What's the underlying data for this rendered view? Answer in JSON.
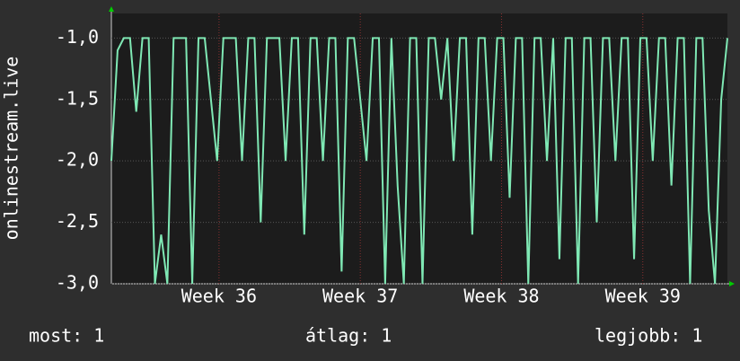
{
  "chart_data": {
    "type": "line",
    "y_label": "onlinestream.live",
    "x": [
      0,
      1,
      2,
      3,
      4,
      5,
      6,
      7,
      8,
      9,
      10,
      11,
      12,
      13,
      14,
      15,
      16,
      17,
      18,
      19,
      20,
      21,
      22,
      23,
      24,
      25,
      26,
      27,
      28,
      29,
      30,
      31,
      32,
      33,
      34,
      35,
      36,
      37,
      38,
      39,
      40,
      41,
      42,
      43,
      44,
      45,
      46,
      47,
      48,
      49,
      50,
      51,
      52,
      53,
      54,
      55,
      56,
      57,
      58,
      59,
      60,
      61,
      62,
      63,
      64,
      65,
      66,
      67,
      68,
      69,
      70,
      71,
      72,
      73,
      74,
      75,
      76,
      77,
      78,
      79,
      80,
      81,
      82,
      83,
      84,
      85,
      86,
      87,
      88,
      89,
      90,
      91,
      92,
      93,
      94,
      95,
      96,
      97,
      98,
      99
    ],
    "series": [
      {
        "name": "onlinestream.live",
        "color": "#7fe8b4",
        "values": [
          -2,
          -1.1,
          -1,
          -1,
          -1.6,
          -1,
          -1,
          -3,
          -2.6,
          -3,
          -1,
          -1,
          -1,
          -3,
          -1,
          -1,
          -1.5,
          -2,
          -1,
          -1,
          -1,
          -2,
          -1,
          -1,
          -2.5,
          -1,
          -1,
          -1,
          -2,
          -1,
          -1,
          -2.6,
          -1,
          -1,
          -2,
          -1,
          -1,
          -2.9,
          -1,
          -1,
          -1.5,
          -2,
          -1,
          -1,
          -3,
          -1,
          -2.2,
          -3,
          -1,
          -1,
          -3,
          -1,
          -1,
          -1.5,
          -1,
          -2,
          -1,
          -1,
          -2.6,
          -1,
          -1,
          -2,
          -1,
          -1,
          -2.3,
          -1,
          -1,
          -3,
          -1,
          -1,
          -2,
          -1,
          -2.8,
          -1,
          -1,
          -3,
          -1,
          -1,
          -2.5,
          -1,
          -1,
          -2,
          -1,
          -1,
          -2.8,
          -1,
          -1,
          -2,
          -1,
          -1,
          -2.2,
          -1,
          -1,
          -3,
          -1,
          -1,
          -2.4,
          -3,
          -1.5,
          -1
        ]
      }
    ],
    "xlim": [
      0,
      99
    ],
    "xticks": [
      {
        "value": 17.3,
        "label": "Week 36"
      },
      {
        "value": 40,
        "label": "Week 37"
      },
      {
        "value": 62.7,
        "label": "Week 38"
      },
      {
        "value": 85.4,
        "label": "Week 39"
      }
    ],
    "ylim": [
      -3,
      -0.8
    ],
    "yticks": [
      {
        "value": -3,
        "label": "-3,0"
      },
      {
        "value": -2.5,
        "label": "-2,5"
      },
      {
        "value": -2,
        "label": "-2,0"
      },
      {
        "value": -1.5,
        "label": "-1,5"
      },
      {
        "value": -1,
        "label": "-1,0"
      }
    ],
    "grid": true,
    "stats": [
      {
        "label": "most:",
        "value": 1
      },
      {
        "label": "átlag:",
        "value": 1
      },
      {
        "label": "legjobb:",
        "value": 1
      }
    ]
  }
}
